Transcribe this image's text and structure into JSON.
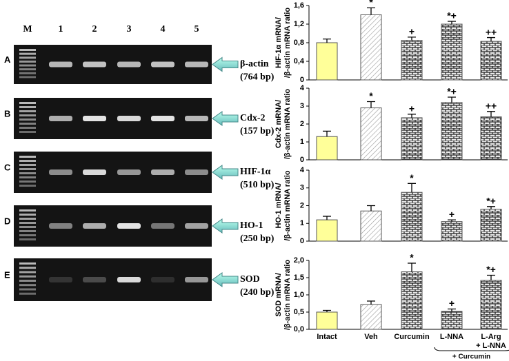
{
  "gel": {
    "lanes": [
      "M",
      "1",
      "2",
      "3",
      "4",
      "5"
    ],
    "rows": [
      {
        "letter": "A",
        "gene": "β-actin",
        "size": "(764 bp)"
      },
      {
        "letter": "B",
        "gene": "Cdx-2",
        "size": "(157 bp)"
      },
      {
        "letter": "C",
        "gene": "HIF-1α",
        "size": "(510 bp)"
      },
      {
        "letter": "D",
        "gene": "HO-1",
        "size": "(250 bp)"
      },
      {
        "letter": "E",
        "gene": "SOD",
        "size": "(240 bp)"
      }
    ]
  },
  "chart_data": [
    {
      "type": "bar",
      "y_label": [
        "HIF-1α mRNA/",
        "/β-actin mRNA ratio"
      ],
      "ylim": [
        0,
        1.6
      ],
      "yticks": [
        0,
        {
          "value": 0.4,
          "label": "0,4"
        },
        {
          "value": 0.8,
          "label": "0,8"
        },
        {
          "value": 1.2,
          "label": "1,2"
        },
        {
          "value": 1.6,
          "label": "1,6"
        }
      ],
      "values": [
        0.8,
        1.4,
        0.85,
        1.2,
        0.83
      ],
      "errors": [
        0.08,
        0.15,
        0.07,
        0.06,
        0.08
      ],
      "annotations": [
        null,
        "*",
        "+",
        "*+",
        "++"
      ],
      "patterns": [
        "solid",
        "diagonal",
        "brick",
        "brick",
        "brick"
      ],
      "color": "#ffff99"
    },
    {
      "type": "bar",
      "y_label": [
        "Cdx-2 mRNA/",
        "/β-actin mRNA ratio"
      ],
      "ylim": [
        0,
        4
      ],
      "yticks": [
        0,
        1,
        2,
        3,
        4
      ],
      "values": [
        1.3,
        2.9,
        2.35,
        3.2,
        2.4
      ],
      "errors": [
        0.3,
        0.35,
        0.2,
        0.3,
        0.3
      ],
      "annotations": [
        null,
        "*",
        "+",
        "*+",
        "++"
      ],
      "patterns": [
        "solid",
        "diagonal",
        "brick",
        "brick",
        "brick"
      ],
      "color": "#ffff99"
    },
    {
      "type": "bar",
      "y_label": [
        "HO-1 mRNA/",
        "/β-actin mRNA ratio"
      ],
      "ylim": [
        0,
        4
      ],
      "yticks": [
        0,
        1,
        2,
        3,
        4
      ],
      "values": [
        1.2,
        1.7,
        2.75,
        1.1,
        1.8
      ],
      "errors": [
        0.2,
        0.3,
        0.5,
        0.1,
        0.15
      ],
      "annotations": [
        null,
        null,
        "*",
        "+",
        "*+"
      ],
      "patterns": [
        "solid",
        "diagonal",
        "brick",
        "brick",
        "brick"
      ],
      "color": "#ffff99"
    },
    {
      "type": "bar",
      "y_label": [
        "SOD mRNA/",
        "/β-actin mRNA ratio"
      ],
      "ylim": [
        0,
        2
      ],
      "yticks": [
        {
          "value": 0,
          "label": "0,0"
        },
        {
          "value": 0.5,
          "label": "0,5"
        },
        {
          "value": 1,
          "label": "1,0"
        },
        {
          "value": 1.5,
          "label": "1,5"
        },
        {
          "value": 2,
          "label": "2,0"
        }
      ],
      "values": [
        0.5,
        0.72,
        1.67,
        0.52,
        1.42
      ],
      "errors": [
        0.05,
        0.1,
        0.25,
        0.07,
        0.15
      ],
      "annotations": [
        null,
        null,
        "*",
        "+",
        "*+"
      ],
      "patterns": [
        "solid",
        "diagonal",
        "brick",
        "brick",
        "brick"
      ],
      "color": "#ffff99",
      "categories": [
        "Intact",
        "Veh",
        "Curcumin",
        "L-NNA",
        [
          "L-Arg",
          "+ L-NNA"
        ]
      ],
      "group_label": "+ Curcumin"
    }
  ]
}
